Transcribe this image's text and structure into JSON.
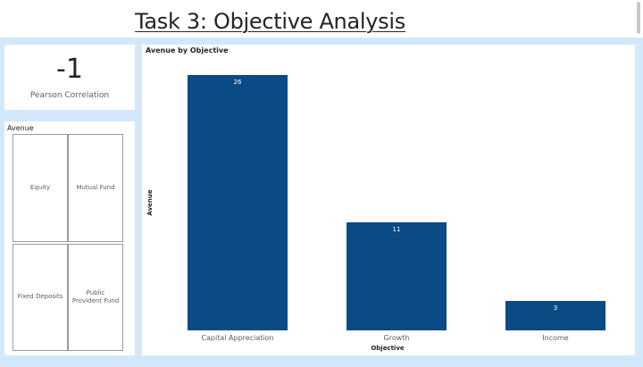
{
  "header": {
    "title": "Task 3: Objective Analysis"
  },
  "card": {
    "value": "-1",
    "label": "Pearson Correlation"
  },
  "slicer": {
    "title": "Avenue",
    "tiles": [
      "Equity",
      "Mutual Fund",
      "Fixed Deposits",
      "Public Provident Fund"
    ]
  },
  "colors": {
    "bar": "#0a4a85",
    "canvas": "#d3e8fb"
  },
  "chart_data": {
    "type": "bar",
    "title": "Avenue by Objective",
    "categories": [
      "Capital Appreciation",
      "Growth",
      "Income"
    ],
    "values": [
      26,
      11,
      3
    ],
    "xlabel": "Objective",
    "ylabel": "Avenue",
    "ylim": [
      0,
      26
    ],
    "grid": false
  }
}
